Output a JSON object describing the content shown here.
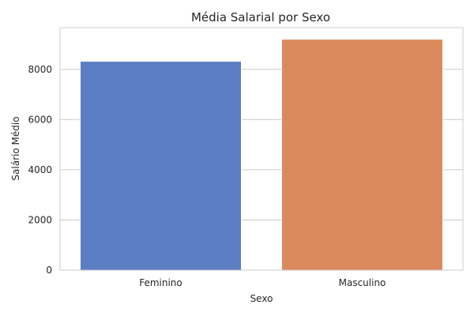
{
  "chart_data": {
    "type": "bar",
    "title": "Média Salarial por Sexo",
    "xlabel": "Sexo",
    "ylabel": "Salário Médio",
    "categories": [
      "Feminino",
      "Masculino"
    ],
    "values": [
      8320,
      9200
    ],
    "colors": [
      "#5b7ec2",
      "#db8a5d"
    ],
    "ylim": [
      0,
      9660
    ],
    "yticks": [
      0,
      2000,
      4000,
      6000,
      8000
    ],
    "grid": true,
    "grid_axis": "y",
    "background": "#ffffff",
    "grid_color": "#cccccc"
  }
}
